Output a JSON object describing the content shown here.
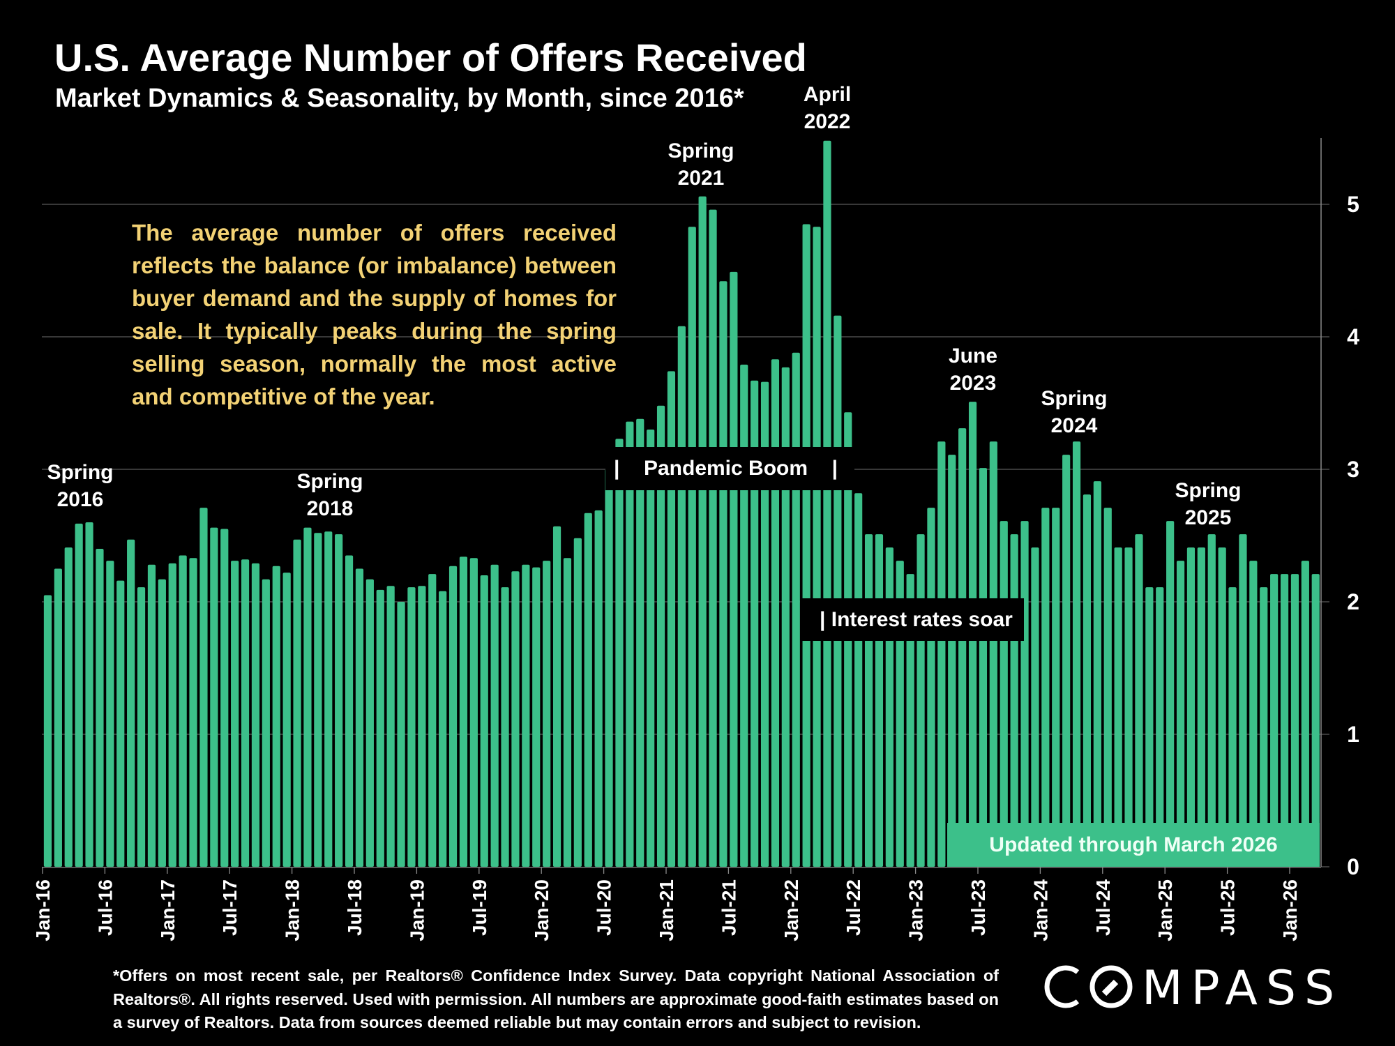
{
  "header": {
    "title": "U.S. Average Number of Offers Received",
    "subtitle": "Market Dynamics & Seasonality, by Month, since 2016*"
  },
  "description": "The average number of offers received reflects the balance (or imbalance) between buyer demand and the supply of homes for sale. It typically peaks during the spring selling season, normally the most active and competitive of the year.",
  "annotations": {
    "spring2016": {
      "line1": "Spring",
      "line2": "2016"
    },
    "spring2018": {
      "line1": "Spring",
      "line2": "2018"
    },
    "spring2021": {
      "line1": "Spring",
      "line2": "2021"
    },
    "april2022": {
      "line1": "April",
      "line2": "2022"
    },
    "june2023": {
      "line1": "June",
      "line2": "2023"
    },
    "spring2024": {
      "line1": "Spring",
      "line2": "2024"
    },
    "spring2025": {
      "line1": "Spring",
      "line2": "2025"
    },
    "pandemic_bar_left": "|",
    "pandemic_label": "Pandemic Boom",
    "pandemic_bar_right": "|",
    "interest_label": "| Interest rates soar",
    "updated_label": "Updated through March 2026"
  },
  "footer": "*Offers on most recent sale, per Realtors® Confidence Index Survey. Data copyright National Association of Realtors®. All rights reserved. Used with permission. All numbers are approximate good-faith estimates based on a survey of Realtors. Data from sources deemed reliable but may contain errors and subject to revision.",
  "logo": {
    "text": "COMPASS"
  },
  "colors": {
    "bar": "#3CC08A",
    "background": "#000000",
    "description_text": "#F3D275",
    "gridline": "#595959"
  },
  "chart_data": {
    "type": "bar",
    "title": "U.S. Average Number of Offers Received",
    "subtitle": "Market Dynamics & Seasonality, by Month, since 2016*",
    "xlabel": "",
    "ylabel": "",
    "ylim": [
      0,
      5.5
    ],
    "yticks": [
      0,
      1,
      2,
      3,
      4,
      5
    ],
    "y_axis_side": "right",
    "grid": true,
    "legend": "none",
    "start_month": "2016-01",
    "xtick_labels": [
      "Jan-16",
      "Jul-16",
      "Jan-17",
      "Jul-17",
      "Jan-18",
      "Jul-18",
      "Jan-19",
      "Jul-19",
      "Jan-20",
      "Jul-20",
      "Jan-21",
      "Jul-21",
      "Jan-22",
      "Jul-22",
      "Jan-23",
      "Jul-23",
      "Jan-24",
      "Jul-24",
      "Jan-25",
      "Jul-25",
      "Jan-26"
    ],
    "categories": [
      "Jan-16",
      "Feb-16",
      "Mar-16",
      "Apr-16",
      "May-16",
      "Jun-16",
      "Jul-16",
      "Aug-16",
      "Sep-16",
      "Oct-16",
      "Nov-16",
      "Dec-16",
      "Jan-17",
      "Feb-17",
      "Mar-17",
      "Apr-17",
      "May-17",
      "Jun-17",
      "Jul-17",
      "Aug-17",
      "Sep-17",
      "Oct-17",
      "Nov-17",
      "Dec-17",
      "Jan-18",
      "Feb-18",
      "Mar-18",
      "Apr-18",
      "May-18",
      "Jun-18",
      "Jul-18",
      "Aug-18",
      "Sep-18",
      "Oct-18",
      "Nov-18",
      "Dec-18",
      "Jan-19",
      "Feb-19",
      "Mar-19",
      "Apr-19",
      "May-19",
      "Jun-19",
      "Jul-19",
      "Aug-19",
      "Sep-19",
      "Oct-19",
      "Nov-19",
      "Dec-19",
      "Jan-20",
      "Feb-20",
      "Mar-20",
      "Apr-20",
      "May-20",
      "Jun-20",
      "Jul-20",
      "Aug-20",
      "Sep-20",
      "Oct-20",
      "Nov-20",
      "Dec-20",
      "Jan-21",
      "Feb-21",
      "Mar-21",
      "Apr-21",
      "May-21",
      "Jun-21",
      "Jul-21",
      "Aug-21",
      "Sep-21",
      "Oct-21",
      "Nov-21",
      "Dec-21",
      "Jan-22",
      "Feb-22",
      "Mar-22",
      "Apr-22",
      "May-22",
      "Jun-22",
      "Jul-22",
      "Aug-22",
      "Sep-22",
      "Oct-22",
      "Nov-22",
      "Dec-22",
      "Jan-23",
      "Feb-23",
      "Mar-23",
      "Apr-23",
      "May-23",
      "Jun-23",
      "Jul-23",
      "Aug-23",
      "Sep-23",
      "Oct-23",
      "Nov-23",
      "Dec-23",
      "Jan-24",
      "Feb-24",
      "Mar-24",
      "Apr-24",
      "May-24",
      "Jun-24",
      "Jul-24",
      "Aug-24",
      "Sep-24",
      "Oct-24",
      "Nov-24",
      "Dec-24",
      "Jan-25",
      "Feb-25",
      "Mar-25",
      "Apr-25",
      "May-25",
      "Jun-25",
      "Jul-25",
      "Aug-25",
      "Sep-25",
      "Oct-25",
      "Nov-25",
      "Dec-25",
      "Jan-26",
      "Feb-26",
      "Mar-26"
    ],
    "values": [
      2.05,
      2.25,
      2.41,
      2.59,
      2.6,
      2.4,
      2.31,
      2.16,
      2.47,
      2.11,
      2.28,
      2.17,
      2.29,
      2.35,
      2.33,
      2.71,
      2.56,
      2.55,
      2.31,
      2.32,
      2.29,
      2.17,
      2.27,
      2.22,
      2.47,
      2.56,
      2.52,
      2.53,
      2.51,
      2.35,
      2.25,
      2.17,
      2.09,
      2.12,
      2.0,
      2.11,
      2.12,
      2.21,
      2.08,
      2.27,
      2.34,
      2.33,
      2.2,
      2.28,
      2.11,
      2.23,
      2.28,
      2.26,
      2.31,
      2.57,
      2.33,
      2.48,
      2.67,
      2.69,
      3.0,
      3.23,
      3.36,
      3.38,
      3.3,
      3.48,
      3.74,
      4.08,
      4.83,
      5.06,
      4.96,
      4.42,
      4.49,
      3.79,
      3.67,
      3.66,
      3.83,
      3.77,
      3.88,
      4.85,
      4.83,
      5.48,
      4.16,
      3.43,
      2.82,
      2.51,
      2.51,
      2.41,
      2.31,
      2.21,
      2.51,
      2.71,
      3.21,
      3.11,
      3.31,
      3.51,
      3.01,
      3.21,
      2.61,
      2.51,
      2.61,
      2.41,
      2.71,
      2.71,
      3.11,
      3.21,
      2.81,
      2.91,
      2.71,
      2.41,
      2.41,
      2.51,
      2.11,
      2.11,
      2.61,
      2.31,
      2.41,
      2.41,
      2.51,
      2.41,
      2.11,
      2.51,
      2.31,
      2.11,
      2.21,
      2.21,
      2.21,
      2.31,
      2.21
    ],
    "annotations": [
      "Spring 2016",
      "Spring 2018",
      "Spring 2021",
      "April 2022",
      "Pandemic Boom",
      "June 2023",
      "Spring 2024",
      "Spring 2025",
      "Interest rates soar",
      "Updated through March 2026"
    ]
  }
}
